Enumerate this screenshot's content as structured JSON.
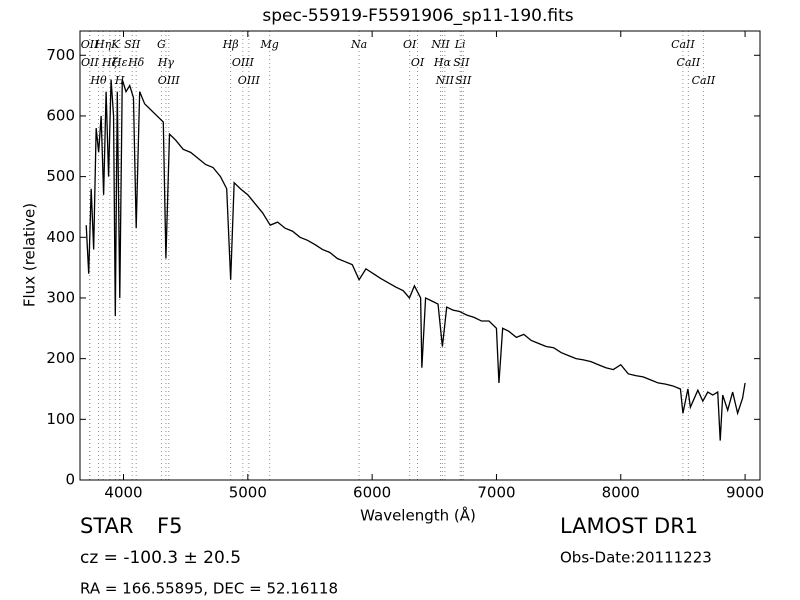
{
  "chart_data": {
    "type": "line",
    "title": "spec-55919-F5591906_sp11-190.fits",
    "x_label": "Wavelength (Å)",
    "y_label": "Flux (relative)",
    "xlim": [
      3650,
      9120
    ],
    "ylim": [
      0,
      740
    ],
    "xticks": [
      4000,
      5000,
      6000,
      7000,
      8000,
      9000
    ],
    "yticks": [
      0,
      100,
      200,
      300,
      400,
      500,
      600,
      700
    ],
    "color": "#000000",
    "line_color": "#55bb55",
    "x": [
      3700,
      3720,
      3740,
      3760,
      3780,
      3800,
      3820,
      3840,
      3860,
      3880,
      3900,
      3920,
      3934,
      3950,
      3970,
      3990,
      4020,
      4050,
      4080,
      4102,
      4130,
      4170,
      4220,
      4270,
      4320,
      4341,
      4370,
      4420,
      4480,
      4540,
      4600,
      4660,
      4720,
      4780,
      4830,
      4862,
      4890,
      4940,
      5000,
      5060,
      5120,
      5180,
      5240,
      5300,
      5360,
      5420,
      5480,
      5540,
      5600,
      5660,
      5720,
      5780,
      5840,
      5895,
      5950,
      6010,
      6070,
      6130,
      6190,
      6250,
      6300,
      6340,
      6390,
      6400,
      6430,
      6480,
      6530,
      6565,
      6600,
      6650,
      6700,
      6760,
      6820,
      6880,
      6940,
      7000,
      7020,
      7050,
      7100,
      7160,
      7220,
      7280,
      7340,
      7400,
      7460,
      7520,
      7580,
      7640,
      7700,
      7760,
      7820,
      7880,
      7940,
      8000,
      8060,
      8120,
      8180,
      8240,
      8300,
      8360,
      8420,
      8480,
      8500,
      8540,
      8560,
      8620,
      8660,
      8700,
      8740,
      8780,
      8800,
      8820,
      8860,
      8900,
      8940,
      8980,
      9000
    ],
    "values": [
      420,
      340,
      480,
      380,
      580,
      540,
      600,
      470,
      640,
      500,
      660,
      600,
      270,
      640,
      300,
      660,
      640,
      650,
      630,
      415,
      640,
      620,
      610,
      600,
      590,
      365,
      570,
      560,
      545,
      540,
      530,
      520,
      515,
      500,
      480,
      330,
      490,
      480,
      470,
      455,
      440,
      420,
      425,
      415,
      410,
      400,
      395,
      388,
      380,
      375,
      365,
      360,
      355,
      330,
      348,
      340,
      332,
      325,
      318,
      312,
      300,
      320,
      300,
      185,
      300,
      295,
      290,
      220,
      285,
      280,
      278,
      272,
      268,
      262,
      262,
      250,
      160,
      250,
      245,
      235,
      240,
      230,
      225,
      220,
      218,
      210,
      205,
      200,
      198,
      195,
      190,
      185,
      182,
      190,
      175,
      172,
      170,
      165,
      160,
      158,
      155,
      150,
      110,
      150,
      120,
      148,
      130,
      145,
      140,
      145,
      65,
      140,
      115,
      145,
      110,
      135,
      160
    ],
    "lines": [
      {
        "x": 3727,
        "label": "OII"
      },
      {
        "x": 3729,
        "label": "OII"
      },
      {
        "x": 3799,
        "label": "Hθ"
      },
      {
        "x": 3836,
        "label": "Hη"
      },
      {
        "x": 3890,
        "label": "Hζ"
      },
      {
        "x": 3934,
        "label": "K"
      },
      {
        "x": 3969,
        "label": "H"
      },
      {
        "x": 3970,
        "label": "Hε"
      },
      {
        "x": 4070,
        "label": "SII"
      },
      {
        "x": 4102,
        "label": "Hδ"
      },
      {
        "x": 4305,
        "label": "G"
      },
      {
        "x": 4341,
        "label": "Hγ"
      },
      {
        "x": 4364,
        "label": "OIII"
      },
      {
        "x": 4862,
        "label": "Hβ"
      },
      {
        "x": 4960,
        "label": "OIII"
      },
      {
        "x": 5008,
        "label": "OIII"
      },
      {
        "x": 5176,
        "label": "Mg"
      },
      {
        "x": 5895,
        "label": "Na"
      },
      {
        "x": 6302,
        "label": "OI"
      },
      {
        "x": 6365,
        "label": "OI"
      },
      {
        "x": 6550,
        "label": "NII"
      },
      {
        "x": 6565,
        "label": "Hα"
      },
      {
        "x": 6585,
        "label": "NII"
      },
      {
        "x": 6708,
        "label": "Li"
      },
      {
        "x": 6718,
        "label": "SII"
      },
      {
        "x": 6733,
        "label": "SII"
      },
      {
        "x": 8500,
        "label": "CaII"
      },
      {
        "x": 8544,
        "label": "CaII"
      },
      {
        "x": 8665,
        "label": "CaII"
      }
    ]
  },
  "info": {
    "object": "STAR",
    "subclass": "F5",
    "redshift": "cz = -100.3 ± 20.5",
    "coords": "RA = 166.55895, DEC = 52.16118",
    "survey": "LAMOST DR1",
    "obs_date": "Obs-Date:20111223"
  }
}
